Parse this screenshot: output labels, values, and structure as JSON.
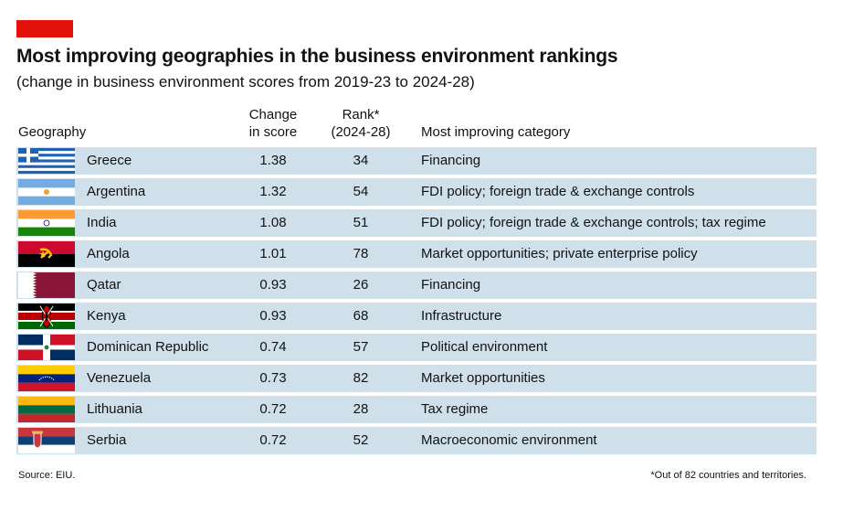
{
  "chart": {
    "title": "Most improving geographies in the business environment rankings",
    "subtitle": "(change in business environment scores from 2019-23 to 2024-28)",
    "headers": {
      "geography": "Geography",
      "change_line1": "Change",
      "change_line2": "in score",
      "rank_line1": "Rank*",
      "rank_line2": "(2024-28)",
      "category": "Most improving category"
    },
    "source": "Source: EIU.",
    "footnote": "*Out of 82 countries and territories."
  },
  "colors": {
    "accent": "#e3120b",
    "row_bg": "#cfe0ea"
  },
  "chart_data": {
    "type": "table",
    "columns": [
      "Geography",
      "Change in score",
      "Rank* (2024-28)",
      "Most improving category"
    ],
    "rows": [
      {
        "flag": "greece-flag-icon",
        "geography": "Greece",
        "change": "1.38",
        "rank": "34",
        "category": "Financing"
      },
      {
        "flag": "argentina-flag-icon",
        "geography": "Argentina",
        "change": "1.32",
        "rank": "54",
        "category": "FDI policy; foreign trade & exchange controls"
      },
      {
        "flag": "india-flag-icon",
        "geography": "India",
        "change": "1.08",
        "rank": "51",
        "category": "FDI policy; foreign trade & exchange controls; tax regime"
      },
      {
        "flag": "angola-flag-icon",
        "geography": "Angola",
        "change": "1.01",
        "rank": "78",
        "category": "Market opportunities; private enterprise policy"
      },
      {
        "flag": "qatar-flag-icon",
        "geography": "Qatar",
        "change": "0.93",
        "rank": "26",
        "category": "Financing"
      },
      {
        "flag": "kenya-flag-icon",
        "geography": "Kenya",
        "change": "0.93",
        "rank": "68",
        "category": "Infrastructure"
      },
      {
        "flag": "dominican-republic-flag-icon",
        "geography": "Dominican Republic",
        "change": "0.74",
        "rank": "57",
        "category": "Political environment"
      },
      {
        "flag": "venezuela-flag-icon",
        "geography": "Venezuela",
        "change": "0.73",
        "rank": "82",
        "category": "Market opportunities"
      },
      {
        "flag": "lithuania-flag-icon",
        "geography": "Lithuania",
        "change": "0.72",
        "rank": "28",
        "category": "Tax regime"
      },
      {
        "flag": "serbia-flag-icon",
        "geography": "Serbia",
        "change": "0.72",
        "rank": "52",
        "category": "Macroeconomic environment"
      }
    ]
  }
}
